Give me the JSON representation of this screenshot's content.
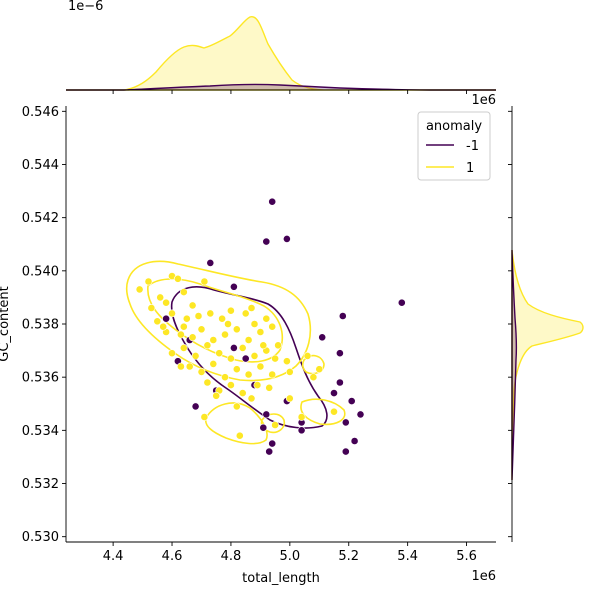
{
  "chart_data": {
    "type": "scatter",
    "kind": "jointplot",
    "xlabel": "total_length",
    "ylabel": "GC_content",
    "x_offset_text": "1e6",
    "y_offset_text": "1e6",
    "top_marginal_offset_text": "1e−6",
    "xlim": [
      4.24,
      5.7
    ],
    "ylim": [
      0.5298,
      0.5462
    ],
    "xticks": [
      "4.4",
      "4.6",
      "4.8",
      "5.0",
      "5.2",
      "5.4",
      "5.6"
    ],
    "yticks": [
      "0.530",
      "0.532",
      "0.534",
      "0.536",
      "0.538",
      "0.540",
      "0.542",
      "0.544",
      "0.546"
    ],
    "legend": {
      "title": "anomaly",
      "placement": "top-right",
      "entries": [
        {
          "label": "-1",
          "color": "#440154"
        },
        {
          "label": "1",
          "color": "#fde725"
        }
      ]
    },
    "series": [
      {
        "name": "-1",
        "color": "#440154",
        "points": [
          [
            4.94,
            0.5426
          ],
          [
            4.92,
            0.5411
          ],
          [
            4.99,
            0.5412
          ],
          [
            4.73,
            0.5403
          ],
          [
            4.81,
            0.5394
          ],
          [
            5.38,
            0.5388
          ],
          [
            5.18,
            0.5383
          ],
          [
            4.58,
            0.5382
          ],
          [
            5.11,
            0.5375
          ],
          [
            4.66,
            0.5374
          ],
          [
            4.81,
            0.5371
          ],
          [
            5.17,
            0.5369
          ],
          [
            4.85,
            0.5367
          ],
          [
            4.62,
            0.5366
          ],
          [
            4.75,
            0.5355
          ],
          [
            4.88,
            0.5357
          ],
          [
            5.17,
            0.5358
          ],
          [
            5.15,
            0.5354
          ],
          [
            4.68,
            0.5349
          ],
          [
            4.99,
            0.5351
          ],
          [
            5.21,
            0.5351
          ],
          [
            4.92,
            0.5346
          ],
          [
            5.24,
            0.5346
          ],
          [
            5.04,
            0.5343
          ],
          [
            5.19,
            0.5343
          ],
          [
            4.91,
            0.5341
          ],
          [
            5.04,
            0.534
          ],
          [
            5.22,
            0.5336
          ],
          [
            4.94,
            0.5335
          ],
          [
            4.93,
            0.5332
          ],
          [
            5.19,
            0.5332
          ]
        ]
      },
      {
        "name": "1",
        "color": "#fde725",
        "points": [
          [
            4.49,
            0.5393
          ],
          [
            4.52,
            0.5396
          ],
          [
            4.56,
            0.539
          ],
          [
            4.6,
            0.5398
          ],
          [
            4.62,
            0.5397
          ],
          [
            4.58,
            0.5388
          ],
          [
            4.64,
            0.5392
          ],
          [
            4.67,
            0.5387
          ],
          [
            4.71,
            0.5396
          ],
          [
            4.55,
            0.5381
          ],
          [
            4.6,
            0.5384
          ],
          [
            4.64,
            0.5379
          ],
          [
            4.69,
            0.5383
          ],
          [
            4.73,
            0.5384
          ],
          [
            4.77,
            0.5382
          ],
          [
            4.8,
            0.5385
          ],
          [
            4.85,
            0.5384
          ],
          [
            4.88,
            0.538
          ],
          [
            4.92,
            0.5382
          ],
          [
            4.58,
            0.5377
          ],
          [
            4.63,
            0.5376
          ],
          [
            4.67,
            0.5375
          ],
          [
            4.7,
            0.5378
          ],
          [
            4.74,
            0.5374
          ],
          [
            4.78,
            0.5376
          ],
          [
            4.82,
            0.5378
          ],
          [
            4.86,
            0.5374
          ],
          [
            4.9,
            0.5377
          ],
          [
            4.94,
            0.5379
          ],
          [
            4.96,
            0.5372
          ],
          [
            4.6,
            0.5369
          ],
          [
            4.64,
            0.5371
          ],
          [
            4.68,
            0.5368
          ],
          [
            4.72,
            0.5372
          ],
          [
            4.76,
            0.5369
          ],
          [
            4.8,
            0.5367
          ],
          [
            4.84,
            0.5371
          ],
          [
            4.88,
            0.5368
          ],
          [
            4.92,
            0.537
          ],
          [
            4.95,
            0.5367
          ],
          [
            4.66,
            0.5364
          ],
          [
            4.7,
            0.5362
          ],
          [
            4.74,
            0.5365
          ],
          [
            4.78,
            0.536
          ],
          [
            4.82,
            0.5363
          ],
          [
            4.86,
            0.5361
          ],
          [
            4.9,
            0.5364
          ],
          [
            4.94,
            0.5361
          ],
          [
            4.99,
            0.5366
          ],
          [
            4.63,
            0.5364
          ],
          [
            4.72,
            0.5358
          ],
          [
            4.76,
            0.5355
          ],
          [
            4.8,
            0.5357
          ],
          [
            4.84,
            0.5354
          ],
          [
            4.89,
            0.5357
          ],
          [
            4.93,
            0.5356
          ],
          [
            5.0,
            0.5362
          ],
          [
            5.06,
            0.5368
          ],
          [
            5.08,
            0.536
          ],
          [
            5.1,
            0.5363
          ],
          [
            4.75,
            0.5353
          ],
          [
            4.82,
            0.5349
          ],
          [
            4.87,
            0.5352
          ],
          [
            5.0,
            0.5352
          ],
          [
            4.71,
            0.5345
          ],
          [
            4.83,
            0.5338
          ],
          [
            4.95,
            0.5342
          ],
          [
            5.04,
            0.5345
          ],
          [
            5.15,
            0.5347
          ],
          [
            4.57,
            0.5379
          ],
          [
            4.79,
            0.538
          ],
          [
            4.87,
            0.5386
          ],
          [
            4.91,
            0.5372
          ],
          [
            4.65,
            0.5382
          ],
          [
            4.53,
            0.5386
          ]
        ]
      }
    ]
  }
}
